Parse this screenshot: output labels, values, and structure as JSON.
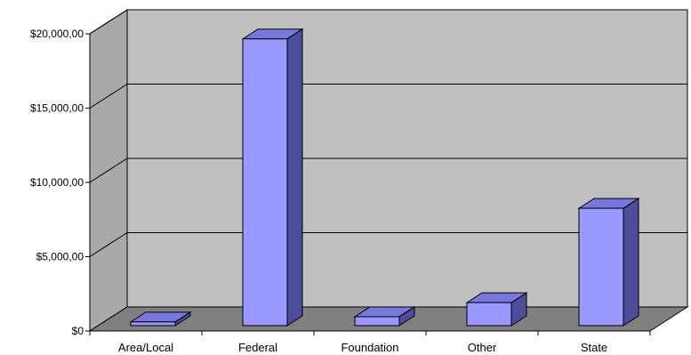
{
  "chart_data": {
    "type": "bar",
    "categories": [
      "Area/Local",
      "Federal",
      "Foundation",
      "Other",
      "State"
    ],
    "values": [
      250,
      19300,
      600,
      1550,
      7900
    ],
    "y_ticks": [
      0,
      5000,
      10000,
      15000,
      20000
    ],
    "y_tick_labels": [
      "$0",
      "$5,000,00",
      "$10,000,00",
      "$15,000,00",
      "$20,000,00"
    ],
    "ylim": [
      0,
      20000
    ],
    "grid": true,
    "legend": "none",
    "style": "3d",
    "colors": {
      "bar_front": "#9999ff",
      "bar_top": "#7777dd",
      "bar_side": "#4d4d99",
      "back_wall": "#c0c0c0",
      "side_wall": "#a9a9a9",
      "floor": "#808080",
      "gridline": "#000000"
    }
  }
}
